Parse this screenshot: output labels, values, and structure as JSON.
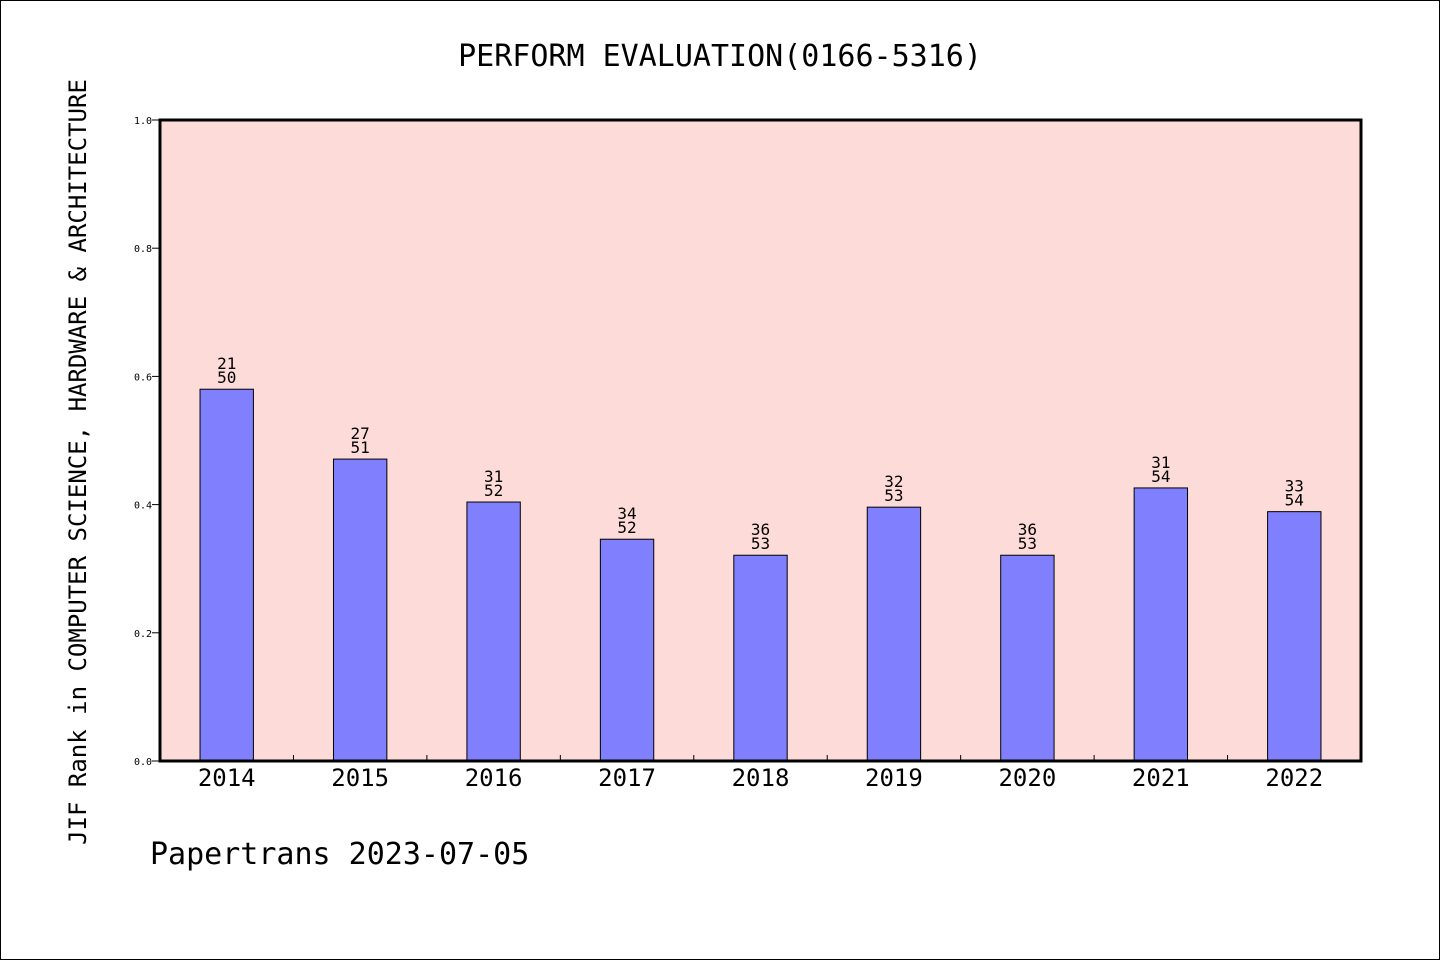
{
  "chart_data": {
    "type": "bar",
    "title": "PERFORM EVALUATION(0166-5316)",
    "ylabel": "JIF Rank in COMPUTER SCIENCE, HARDWARE & ARCHITECTURE",
    "xlabel": "",
    "footer": "Papertrans 2023-07-05",
    "ylim": [
      0,
      1.0
    ],
    "yticks": [
      "0.0",
      "0.2",
      "0.4",
      "0.6",
      "0.8",
      "1.0"
    ],
    "categories": [
      "2014",
      "2015",
      "2016",
      "2017",
      "2018",
      "2019",
      "2020",
      "2021",
      "2022"
    ],
    "values": [
      0.58,
      0.471,
      0.404,
      0.346,
      0.321,
      0.396,
      0.321,
      0.426,
      0.389
    ],
    "labels_top": [
      "21",
      "27",
      "31",
      "34",
      "36",
      "32",
      "36",
      "31",
      "33"
    ],
    "labels_bottom": [
      "50",
      "51",
      "52",
      "52",
      "53",
      "53",
      "53",
      "54",
      "54"
    ],
    "grid": false,
    "legend": "none",
    "colors": {
      "plot_background": "#fddbd8",
      "bar_fill": "#8080ff",
      "bar_stroke": "#000000",
      "frame": "#000000"
    }
  }
}
